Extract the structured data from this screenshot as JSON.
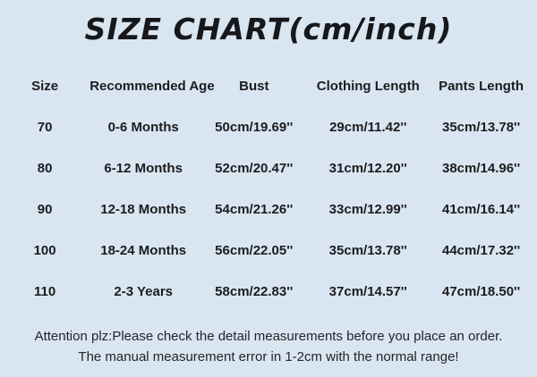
{
  "title": "SIZE CHART(cm/inch)",
  "table": {
    "headers": [
      "Size",
      "Recommended Age",
      "Bust",
      "Clothing Length",
      "Pants Length"
    ],
    "rows": [
      [
        "70",
        "0-6 Months",
        "50cm/19.69''",
        "29cm/11.42''",
        "35cm/13.78''"
      ],
      [
        "80",
        "6-12 Months",
        "52cm/20.47''",
        "31cm/12.20''",
        "38cm/14.96''"
      ],
      [
        "90",
        "12-18 Months",
        "54cm/21.26''",
        "33cm/12.99''",
        "41cm/16.14''"
      ],
      [
        "100",
        "18-24 Months",
        "56cm/22.05''",
        "35cm/13.78''",
        "44cm/17.32''"
      ],
      [
        "110",
        "2-3 Years",
        "58cm/22.83''",
        "37cm/14.57''",
        "47cm/18.50''"
      ]
    ]
  },
  "footer": {
    "line1": "Attention plz:Please check the detail measurements before you place an order.",
    "line2": "The manual measurement error in 1-2cm with the normal range!"
  },
  "colors": {
    "background": "#d9e6f2",
    "text": "#1c1c1e"
  }
}
